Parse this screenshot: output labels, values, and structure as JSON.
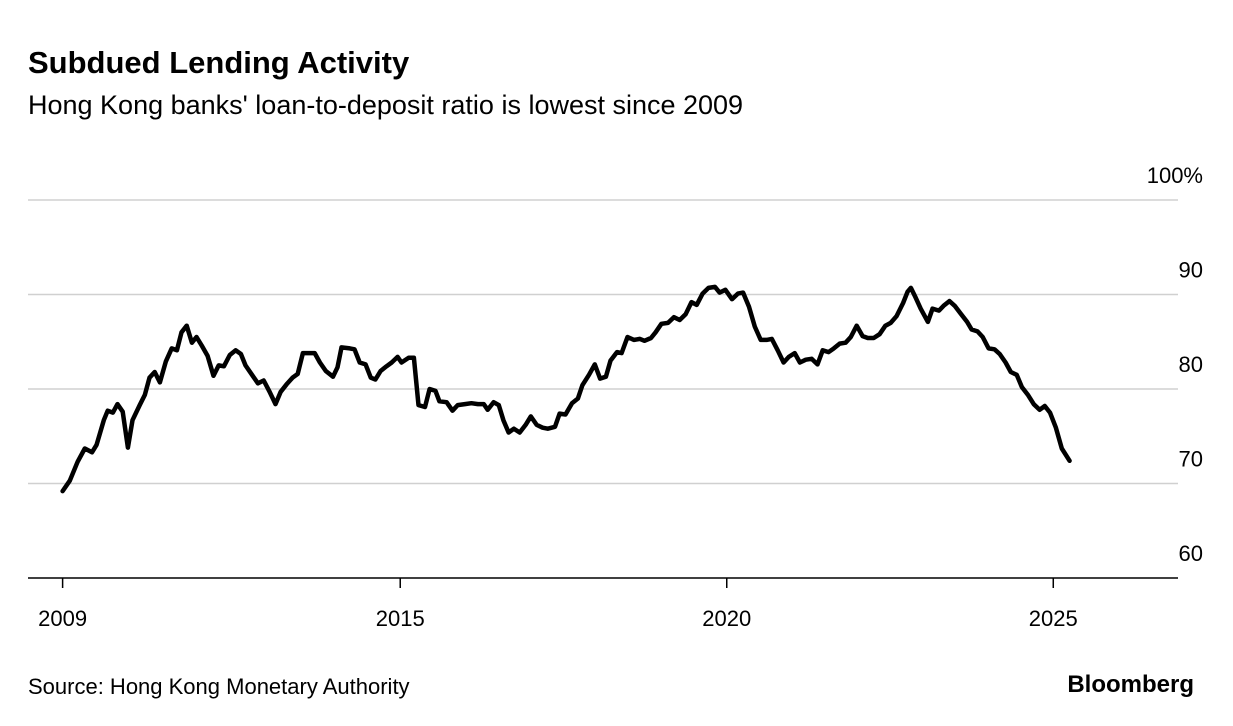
{
  "chart_data": {
    "type": "line",
    "title": "Subdued Lending Activity",
    "subtitle": "Hong Kong banks' loan-to-deposit ratio is lowest since 2009",
    "source": "Source: Hong Kong Monetary Authority",
    "brand": "Bloomberg",
    "color": "#000000",
    "x": [
      2009.83,
      2009.94,
      2010.06,
      2010.17,
      2010.28,
      2010.35,
      2010.46,
      2010.52,
      2010.6,
      2010.67,
      2010.75,
      2010.83,
      2010.9,
      2011.01,
      2011.09,
      2011.16,
      2011.24,
      2011.32,
      2011.41,
      2011.5,
      2011.58,
      2011.65,
      2011.73,
      2011.81,
      2011.88,
      2011.96,
      2012.05,
      2012.14,
      2012.22,
      2012.3,
      2012.39,
      2012.48,
      2012.56,
      2012.63,
      2012.73,
      2012.82,
      2012.91,
      2013.0,
      2013.09,
      2013.17,
      2013.26,
      2013.35,
      2013.43,
      2013.51,
      2013.61,
      2013.69,
      2013.77,
      2013.86,
      2013.97,
      2014.04,
      2014.1,
      2014.23,
      2014.3,
      2014.38,
      2014.47,
      2014.55,
      2014.62,
      2014.7,
      2014.79,
      2014.87,
      2014.96,
      2015.02,
      2015.13,
      2015.21,
      2015.28,
      2015.38,
      2015.45,
      2015.54,
      2015.6,
      2015.71,
      2015.8,
      2015.88,
      2015.99,
      2016.09,
      2016.19,
      2016.28,
      2016.34,
      2016.43,
      2016.51,
      2016.58,
      2016.66,
      2016.74,
      2016.83,
      2016.92,
      2017.0,
      2017.09,
      2017.18,
      2017.26,
      2017.37,
      2017.44,
      2017.53,
      2017.63,
      2017.72,
      2017.79,
      2017.89,
      2017.98,
      2018.06,
      2018.15,
      2018.22,
      2018.32,
      2018.39,
      2018.48,
      2018.58,
      2018.67,
      2018.74,
      2018.84,
      2018.91,
      2019.0,
      2019.1,
      2019.19,
      2019.28,
      2019.37,
      2019.46,
      2019.54,
      2019.63,
      2019.72,
      2019.82,
      2019.89,
      2019.98,
      2020.08,
      2020.17,
      2020.25,
      2020.34,
      2020.43,
      2020.52,
      2020.61,
      2020.69,
      2020.78,
      2020.87,
      2020.95,
      2021.04,
      2021.12,
      2021.21,
      2021.3,
      2021.39,
      2021.47,
      2021.56,
      2021.64,
      2021.73,
      2021.82,
      2021.9,
      2021.99,
      2022.08,
      2022.16,
      2022.25,
      2022.34,
      2022.43,
      2022.51,
      2022.6,
      2022.7,
      2022.77,
      2022.82,
      2022.89,
      2022.97,
      2023.08,
      2023.15,
      2023.25,
      2023.32,
      2023.41,
      2023.49,
      2023.58,
      2023.68,
      2023.75,
      2023.84,
      2023.92,
      2024.01,
      2024.1,
      2024.18,
      2024.27,
      2024.35,
      2024.44,
      2024.52,
      2024.61,
      2024.7,
      2024.79,
      2024.87,
      2024.95,
      2025.04,
      2025.13,
      2025.25
    ],
    "values": [
      69.2,
      70.3,
      72.3,
      73.7,
      73.3,
      74.1,
      76.7,
      77.7,
      77.5,
      78.4,
      77.6,
      73.8,
      76.7,
      78.3,
      79.4,
      81.2,
      81.8,
      80.7,
      82.9,
      84.3,
      84.1,
      86.0,
      86.7,
      84.9,
      85.5,
      84.6,
      83.5,
      81.4,
      82.5,
      82.4,
      83.6,
      84.1,
      83.7,
      82.5,
      81.5,
      80.6,
      80.9,
      79.7,
      78.4,
      79.7,
      80.5,
      81.2,
      81.6,
      83.8,
      83.8,
      83.8,
      82.8,
      81.9,
      81.3,
      82.3,
      84.4,
      84.3,
      84.2,
      82.8,
      82.6,
      81.2,
      81.0,
      81.9,
      82.4,
      82.8,
      83.4,
      82.8,
      83.3,
      83.3,
      78.3,
      78.1,
      80.0,
      79.8,
      78.7,
      78.6,
      77.7,
      78.3,
      78.4,
      78.5,
      78.4,
      78.4,
      77.8,
      78.6,
      78.3,
      76.7,
      75.4,
      75.8,
      75.4,
      76.2,
      77.1,
      76.2,
      75.9,
      75.8,
      76.0,
      77.4,
      77.3,
      78.5,
      79.0,
      80.4,
      81.5,
      82.6,
      81.1,
      81.3,
      83.0,
      83.9,
      83.8,
      85.5,
      85.2,
      85.3,
      85.1,
      85.4,
      86.0,
      86.9,
      87.0,
      87.6,
      87.3,
      87.9,
      89.2,
      88.9,
      90.1,
      90.7,
      90.8,
      90.2,
      90.5,
      89.5,
      90.1,
      90.2,
      88.7,
      86.6,
      85.2,
      85.2,
      85.3,
      84.1,
      82.8,
      83.4,
      83.8,
      82.8,
      83.1,
      83.2,
      82.6,
      84.1,
      83.9,
      84.3,
      84.8,
      84.9,
      85.5,
      86.7,
      85.6,
      85.4,
      85.4,
      85.8,
      86.7,
      87.0,
      87.7,
      89.1,
      90.3,
      90.7,
      89.7,
      88.5,
      87.1,
      88.5,
      88.3,
      88.8,
      89.3,
      88.8,
      88.0,
      87.1,
      86.3,
      86.1,
      85.5,
      84.3,
      84.2,
      83.7,
      82.8,
      81.8,
      81.5,
      80.2,
      79.4,
      78.4,
      77.8,
      78.2,
      77.5,
      75.9,
      73.7,
      72.4
    ],
    "xlim": [
      2009.3,
      2026.91
    ],
    "xticks": [
      {
        "value": 2009.83,
        "label": "2009"
      },
      2015,
      2020,
      2025
    ],
    "ylim": [
      60,
      100
    ],
    "yticks": [
      60,
      70,
      80,
      90,
      {
        "value": 100,
        "label": "100%"
      }
    ],
    "grid": true
  }
}
